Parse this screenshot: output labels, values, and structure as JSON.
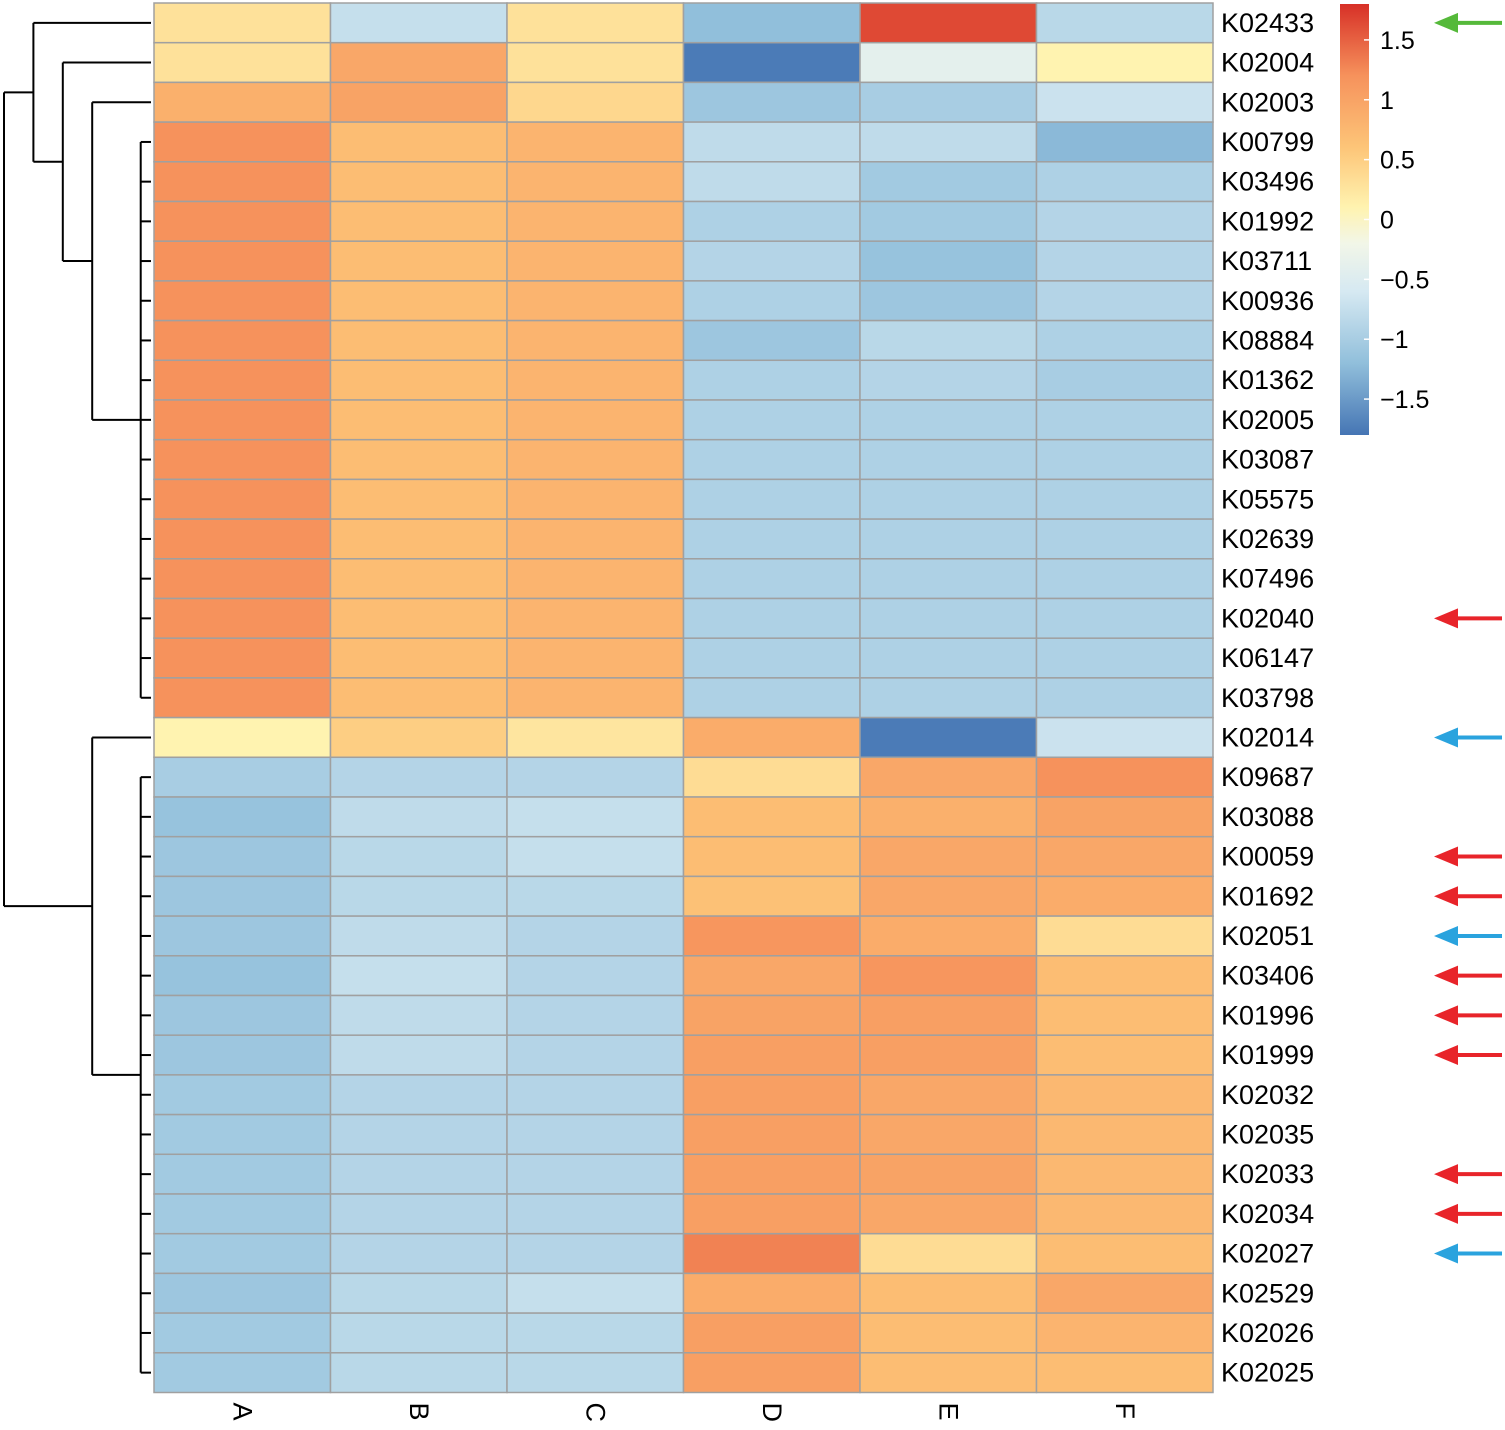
{
  "chart_data": {
    "type": "heatmap",
    "title": "",
    "xlabel": "",
    "ylabel": "",
    "columns": [
      "A",
      "B",
      "C",
      "D",
      "E",
      "F"
    ],
    "rows": [
      "K02433",
      "K02004",
      "K02003",
      "K00799",
      "K03496",
      "K01992",
      "K03711",
      "K00936",
      "K08884",
      "K01362",
      "K02005",
      "K03087",
      "K05575",
      "K02639",
      "K07496",
      "K02040",
      "K06147",
      "K03798",
      "K02014",
      "K09687",
      "K03088",
      "K00059",
      "K01692",
      "K02051",
      "K03406",
      "K01996",
      "K01999",
      "K02032",
      "K02035",
      "K02033",
      "K02034",
      "K02027",
      "K02529",
      "K02026",
      "K02025"
    ],
    "values": [
      [
        0.3,
        -0.75,
        0.3,
        -1.2,
        1.65,
        -0.85
      ],
      [
        0.3,
        0.95,
        0.3,
        -1.75,
        -0.4,
        0.1
      ],
      [
        0.85,
        1.0,
        0.4,
        -1.1,
        -1.0,
        -0.7
      ],
      [
        1.2,
        0.7,
        0.8,
        -0.8,
        -0.8,
        -1.25
      ],
      [
        1.2,
        0.7,
        0.8,
        -0.8,
        -1.05,
        -0.95
      ],
      [
        1.2,
        0.7,
        0.8,
        -0.95,
        -1.05,
        -0.9
      ],
      [
        1.2,
        0.7,
        0.8,
        -0.9,
        -1.15,
        -0.9
      ],
      [
        1.2,
        0.7,
        0.8,
        -0.95,
        -1.1,
        -0.9
      ],
      [
        1.2,
        0.7,
        0.8,
        -1.1,
        -0.85,
        -0.95
      ],
      [
        1.2,
        0.7,
        0.8,
        -0.95,
        -0.9,
        -1.0
      ],
      [
        1.2,
        0.7,
        0.8,
        -0.95,
        -0.95,
        -0.95
      ],
      [
        1.2,
        0.7,
        0.8,
        -0.95,
        -0.95,
        -0.95
      ],
      [
        1.2,
        0.7,
        0.8,
        -0.95,
        -0.95,
        -0.95
      ],
      [
        1.2,
        0.7,
        0.8,
        -0.95,
        -0.95,
        -0.95
      ],
      [
        1.2,
        0.7,
        0.8,
        -0.95,
        -0.95,
        -0.95
      ],
      [
        1.2,
        0.7,
        0.8,
        -0.95,
        -0.95,
        -0.95
      ],
      [
        1.2,
        0.7,
        0.8,
        -0.95,
        -0.95,
        -0.95
      ],
      [
        1.2,
        0.7,
        0.8,
        -0.95,
        -0.95,
        -0.95
      ],
      [
        0.1,
        0.5,
        0.25,
        0.9,
        -1.75,
        -0.7
      ],
      [
        -1.0,
        -0.9,
        -0.9,
        0.35,
        0.95,
        1.2
      ],
      [
        -1.15,
        -0.8,
        -0.75,
        0.7,
        0.85,
        1.0
      ],
      [
        -1.1,
        -0.85,
        -0.75,
        0.7,
        0.95,
        0.95
      ],
      [
        -1.1,
        -0.85,
        -0.85,
        0.65,
        0.95,
        0.9
      ],
      [
        -1.1,
        -0.8,
        -0.9,
        1.15,
        0.9,
        0.35
      ],
      [
        -1.15,
        -0.75,
        -0.9,
        0.95,
        1.15,
        0.7
      ],
      [
        -1.1,
        -0.8,
        -0.9,
        1.0,
        1.05,
        0.7
      ],
      [
        -1.1,
        -0.8,
        -0.9,
        1.05,
        1.05,
        0.7
      ],
      [
        -1.05,
        -0.9,
        -0.9,
        1.05,
        0.95,
        0.75
      ],
      [
        -1.05,
        -0.9,
        -0.9,
        1.05,
        0.95,
        0.75
      ],
      [
        -1.05,
        -0.9,
        -0.9,
        1.05,
        1.0,
        0.75
      ],
      [
        -1.05,
        -0.9,
        -0.9,
        1.05,
        0.95,
        0.75
      ],
      [
        -1.05,
        -0.9,
        -0.9,
        1.3,
        0.35,
        0.7
      ],
      [
        -1.1,
        -0.85,
        -0.75,
        0.9,
        0.7,
        0.95
      ],
      [
        -1.05,
        -0.85,
        -0.85,
        1.05,
        0.7,
        0.8
      ],
      [
        -1.05,
        -0.85,
        -0.85,
        1.05,
        0.7,
        0.7
      ]
    ],
    "color_scale": {
      "range": [
        -1.8,
        1.8
      ],
      "ticks": [
        1.5,
        1,
        0.5,
        0,
        -0.5,
        -1,
        -1.5
      ],
      "tick_labels": [
        "1.5",
        "1",
        "0.5",
        "0",
        "−0.5",
        "−1",
        "−1.5"
      ],
      "stops": [
        {
          "v": -1.8,
          "c": "#4575b4"
        },
        {
          "v": -1.2,
          "c": "#91bfdb"
        },
        {
          "v": -0.6,
          "c": "#d6e9f2"
        },
        {
          "v": -0.2,
          "c": "#f2f6e8"
        },
        {
          "v": 0.1,
          "c": "#fff3b0"
        },
        {
          "v": 0.6,
          "c": "#fdc578"
        },
        {
          "v": 1.2,
          "c": "#f6925c"
        },
        {
          "v": 1.8,
          "c": "#d73027"
        }
      ]
    },
    "row_dendrogram": {
      "children": [
        {
          "children": [
            {
              "children": [
                "K02433"
              ]
            },
            {
              "children": [
                {
                  "children": [
                    "K02004"
                  ]
                },
                {
                  "children": [
                    {
                      "children": [
                        "K02003"
                      ]
                    },
                    {
                      "children": [
                        "K00799",
                        "K03496",
                        "K01992",
                        "K03711",
                        "K00936",
                        "K08884",
                        "K01362",
                        "K02005",
                        "K03087",
                        "K05575",
                        "K02639",
                        "K07496",
                        "K02040",
                        "K06147",
                        "K03798"
                      ]
                    }
                  ]
                }
              ]
            }
          ]
        },
        {
          "children": [
            {
              "children": [
                "K02014"
              ]
            },
            {
              "children": [
                "K09687",
                "K03088",
                "K00059",
                "K01692",
                "K02051",
                "K03406",
                "K01996",
                "K01999",
                "K02032",
                "K02035",
                "K02033",
                "K02034",
                "K02027",
                "K02529",
                "K02026",
                "K02025"
              ]
            }
          ]
        }
      ]
    },
    "annotations": [
      {
        "row": "K02433",
        "marker": "arrow",
        "color": "#55b93a"
      },
      {
        "row": "K02040",
        "marker": "arrow",
        "color": "#e8242a"
      },
      {
        "row": "K02014",
        "marker": "arrow",
        "color": "#2aa3de"
      },
      {
        "row": "K00059",
        "marker": "arrow",
        "color": "#e8242a"
      },
      {
        "row": "K01692",
        "marker": "arrow",
        "color": "#e8242a"
      },
      {
        "row": "K02051",
        "marker": "arrow",
        "color": "#2aa3de"
      },
      {
        "row": "K03406",
        "marker": "arrow",
        "color": "#e8242a"
      },
      {
        "row": "K01996",
        "marker": "arrow",
        "color": "#e8242a"
      },
      {
        "row": "K01999",
        "marker": "arrow",
        "color": "#e8242a"
      },
      {
        "row": "K02033",
        "marker": "arrow",
        "color": "#e8242a"
      },
      {
        "row": "K02034",
        "marker": "arrow",
        "color": "#e8242a"
      },
      {
        "row": "K02027",
        "marker": "arrow",
        "color": "#2aa3de"
      }
    ]
  }
}
